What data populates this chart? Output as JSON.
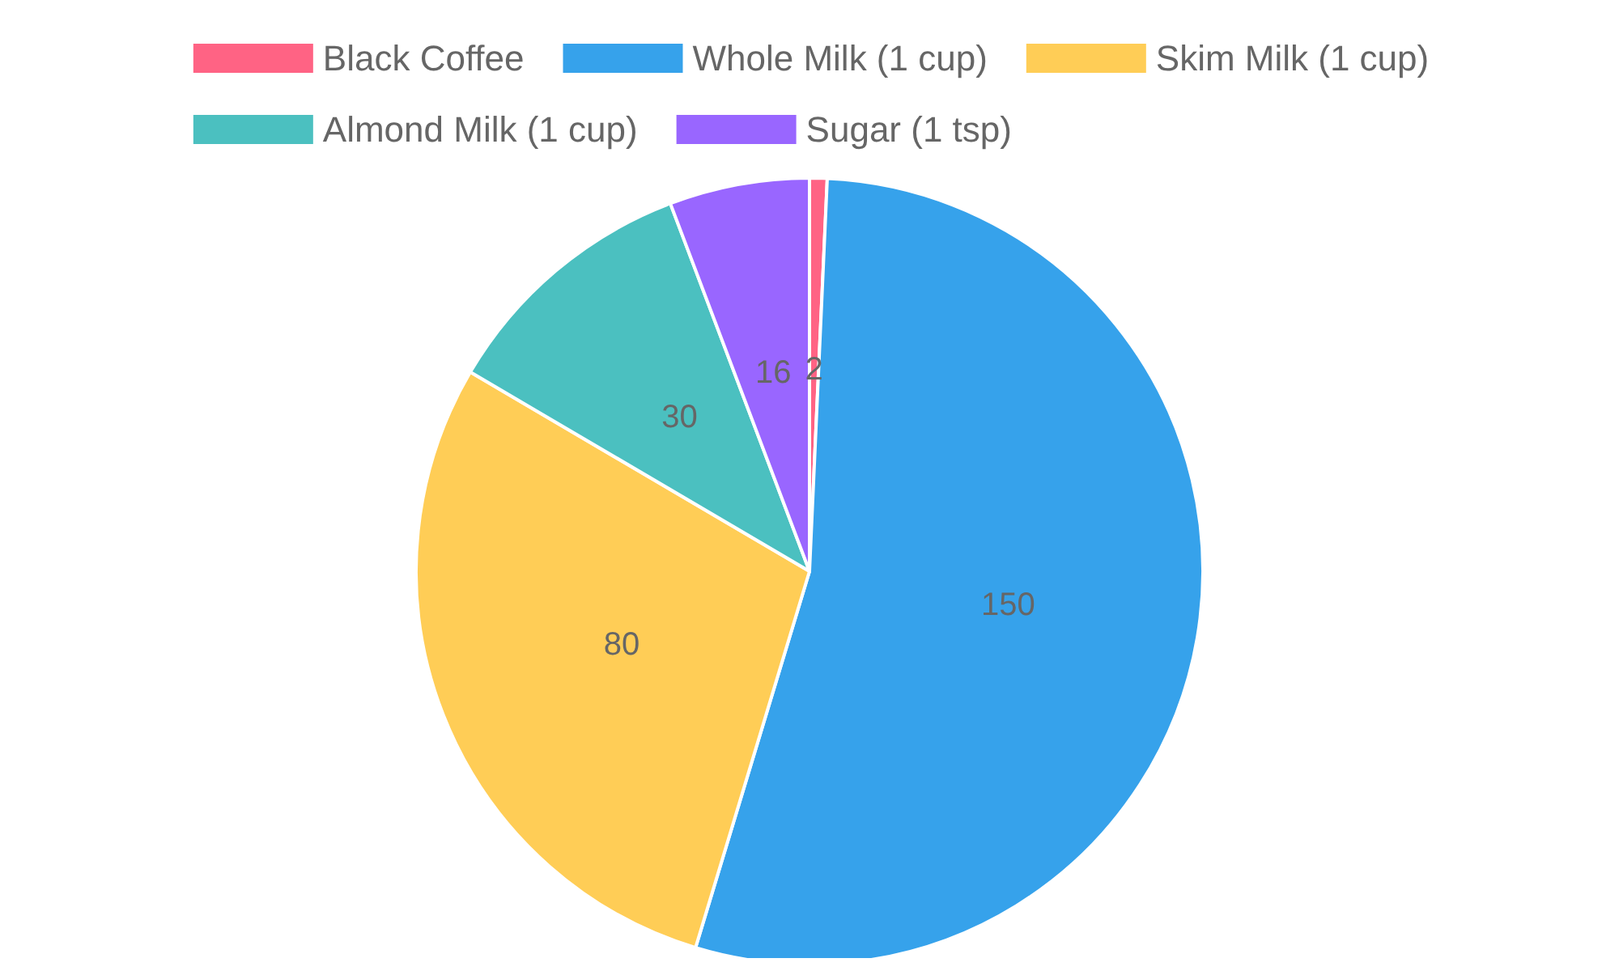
{
  "chart_data": {
    "type": "pie",
    "categories": [
      "Black Coffee",
      "Whole Milk (1 cup)",
      "Skim Milk (1 cup)",
      "Almond Milk (1 cup)",
      "Sugar (1 tsp)"
    ],
    "values": [
      2,
      150,
      80,
      30,
      16
    ],
    "colors": [
      "#ff6384",
      "#36a2eb",
      "#ffcd56",
      "#4bc0c0",
      "#9966ff"
    ],
    "legend": "top",
    "data_labels": true
  }
}
